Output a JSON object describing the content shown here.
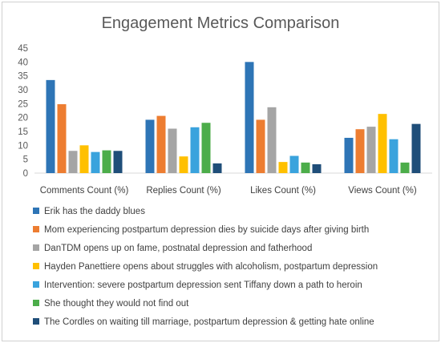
{
  "chart_data": {
    "type": "bar",
    "title": "Engagement Metrics Comparison",
    "categories": [
      "Comments Count (%)",
      "Replies Count (%)",
      "Likes Count (%)",
      "Views Count (%)"
    ],
    "ylim": [
      0,
      45
    ],
    "yticks": [
      0,
      5,
      10,
      15,
      20,
      25,
      30,
      35,
      40,
      45
    ],
    "grid": false,
    "legend_position": "bottom",
    "series": [
      {
        "name": "Erik has the daddy blues",
        "color": "#2e75b6",
        "values": [
          33.5,
          19.2,
          40.0,
          12.7
        ]
      },
      {
        "name": "Mom experiencing postpartum depression dies by suicide days after giving birth",
        "color": "#ed7d31",
        "values": [
          24.8,
          20.6,
          19.2,
          15.8
        ]
      },
      {
        "name": "DanTDM opens up on fame, postnatal depression and fatherhood",
        "color": "#a5a5a5",
        "values": [
          8.0,
          16.0,
          23.7,
          16.7
        ]
      },
      {
        "name": "Hayden Panettiere opens about struggles with alcoholism, postpartum depression",
        "color": "#ffc000",
        "values": [
          10.0,
          6.0,
          4.0,
          21.3
        ]
      },
      {
        "name": "Intervention: severe postpartum depression sent Tiffany down a path to heroin",
        "color": "#3aa3dd",
        "values": [
          7.6,
          16.5,
          6.2,
          12.2
        ]
      },
      {
        "name": "She thought they would not find out",
        "color": "#4cad4a",
        "values": [
          8.2,
          18.1,
          3.8,
          3.8
        ]
      },
      {
        "name": "The Cordles on waiting till marriage, postpartum depression & getting hate online",
        "color": "#1f4e79",
        "values": [
          8.0,
          3.5,
          3.2,
          17.7
        ]
      }
    ]
  }
}
